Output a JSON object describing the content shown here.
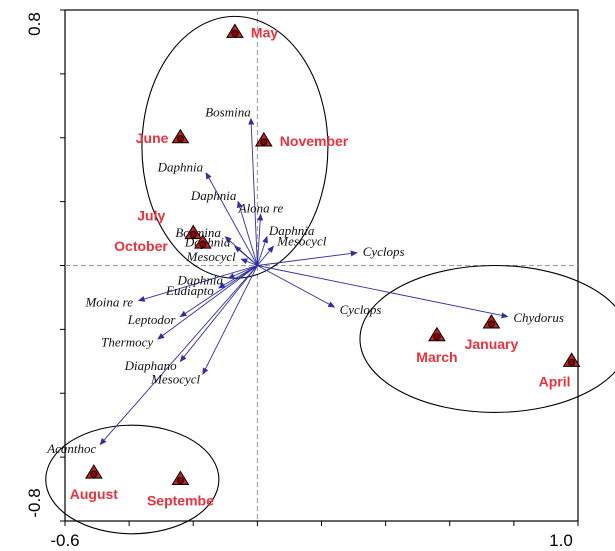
{
  "chart_data": {
    "type": "scatter",
    "title": "",
    "xlabel": "",
    "ylabel": "",
    "xlim": [
      -0.6,
      1.0
    ],
    "ylim": [
      -0.8,
      0.8
    ],
    "x_tick_labels": [
      "-0.6",
      "1.0"
    ],
    "y_tick_labels": [
      "0.8",
      "-0.8"
    ],
    "grid": false,
    "colors": {
      "arrow": "#2f2fa0",
      "month_fill": "#cc2020",
      "month_text": "#e8323c",
      "axis": "#000000",
      "zero_line": "#9a9a9a"
    },
    "species": [
      {
        "name": "Bosmina",
        "x": -0.02,
        "y": 0.46
      },
      {
        "name": "Daphnia",
        "x": -0.16,
        "y": 0.29
      },
      {
        "name": "Daphnia",
        "x": -0.06,
        "y": 0.2
      },
      {
        "name": "Alona re",
        "x": 0.01,
        "y": 0.16
      },
      {
        "name": "Daphnia",
        "x": 0.03,
        "y": 0.09
      },
      {
        "name": "Mesocycl",
        "x": 0.05,
        "y": 0.06
      },
      {
        "name": "Bosmina",
        "x": -0.1,
        "y": 0.09
      },
      {
        "name": "Daphnia",
        "x": -0.07,
        "y": 0.06
      },
      {
        "name": "Mesocycl",
        "x": -0.05,
        "y": 0.02
      },
      {
        "name": "Cyclops",
        "x": 0.31,
        "y": 0.04
      },
      {
        "name": "Daphnia",
        "x": -0.09,
        "y": -0.04
      },
      {
        "name": "Eudiapto",
        "x": -0.12,
        "y": -0.07
      },
      {
        "name": "Moina re",
        "x": -0.37,
        "y": -0.11
      },
      {
        "name": "Chydorus",
        "x": 0.78,
        "y": -0.16
      },
      {
        "name": "Cyclops",
        "x": 0.24,
        "y": -0.13
      },
      {
        "name": "Leptodor",
        "x": -0.24,
        "y": -0.16
      },
      {
        "name": "Thermocy",
        "x": -0.31,
        "y": -0.23
      },
      {
        "name": "Diaphano",
        "x": -0.24,
        "y": -0.3
      },
      {
        "name": "Mesocycl",
        "x": -0.17,
        "y": -0.34
      },
      {
        "name": "Acanthoc",
        "x": -0.49,
        "y": -0.56
      }
    ],
    "months": [
      {
        "name": "May",
        "x": -0.07,
        "y": 0.73
      },
      {
        "name": "June",
        "x": -0.24,
        "y": 0.4
      },
      {
        "name": "November",
        "x": 0.02,
        "y": 0.39
      },
      {
        "name": "July",
        "x": -0.2,
        "y": 0.1
      },
      {
        "name": "October",
        "x": -0.17,
        "y": 0.07
      },
      {
        "name": "March",
        "x": 0.56,
        "y": -0.22
      },
      {
        "name": "January",
        "x": 0.73,
        "y": -0.18
      },
      {
        "name": "April",
        "x": 0.98,
        "y": -0.3
      },
      {
        "name": "August",
        "x": -0.51,
        "y": -0.65
      },
      {
        "name": "Septembe",
        "x": -0.24,
        "y": -0.67
      }
    ],
    "groups": [
      {
        "cx": -0.07,
        "cy": 0.37,
        "rx": 0.29,
        "ry": 0.41
      },
      {
        "cx": 0.74,
        "cy": -0.23,
        "rx": 0.42,
        "ry": 0.23
      },
      {
        "cx": -0.39,
        "cy": -0.67,
        "rx": 0.27,
        "ry": 0.17
      }
    ]
  }
}
